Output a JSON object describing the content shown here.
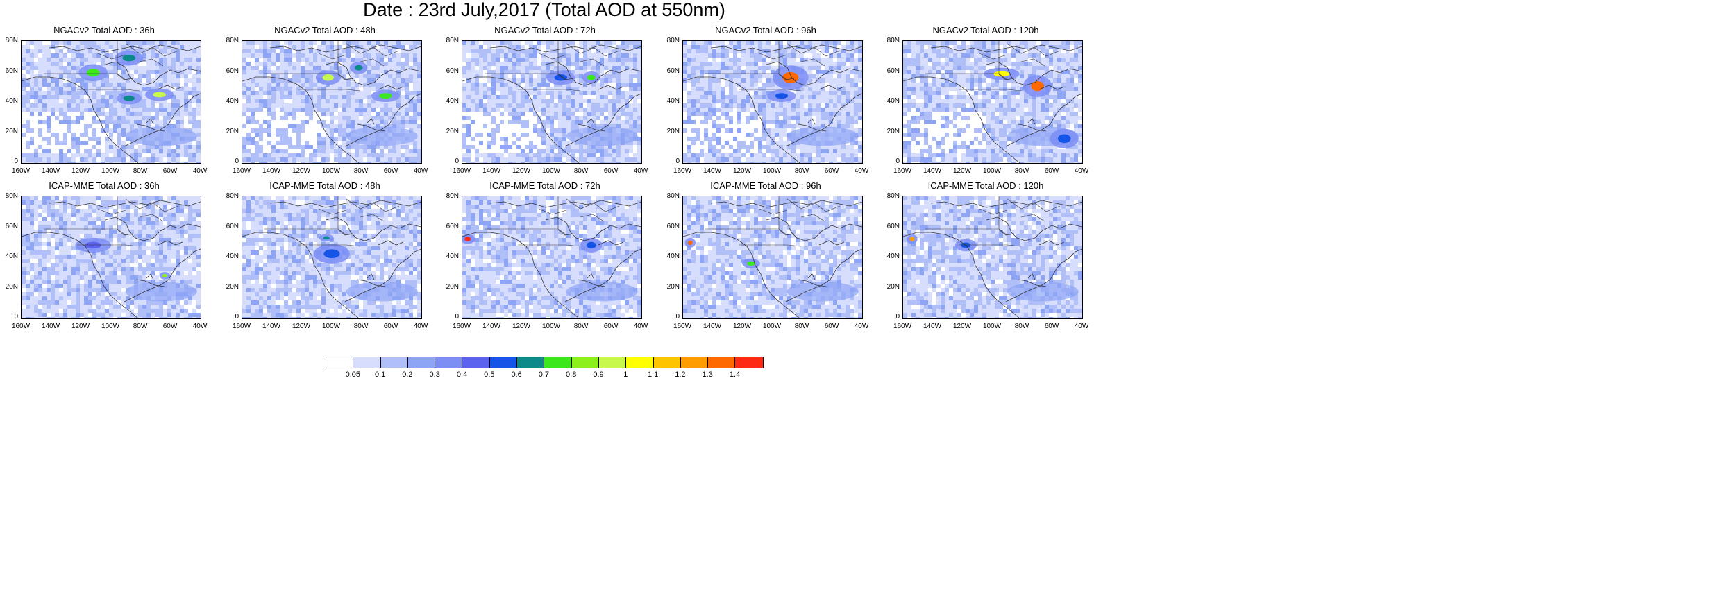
{
  "title": "Date : 23rd July,2017 (Total AOD at 550nm)",
  "lat_labels": [
    "80N",
    "60N",
    "40N",
    "20N",
    "0"
  ],
  "lon_labels": [
    "160W",
    "140W",
    "120W",
    "100W",
    "80W",
    "60W",
    "40W"
  ],
  "panels": [
    {
      "title": "NGACv2 Total AOD : 36h",
      "hotspots": [
        [
          "0.4",
          "0.26",
          "0.08",
          "0.07",
          0.7
        ],
        [
          "0.6",
          "0.14",
          "0.08",
          "0.06",
          0.6
        ],
        [
          "0.77",
          "0.44",
          "0.08",
          "0.05",
          0.9
        ],
        [
          "0.6",
          "0.47",
          "0.07",
          "0.05",
          0.6
        ]
      ]
    },
    {
      "title": "NGACv2 Total AOD : 48h",
      "hotspots": [
        [
          "0.48",
          "0.3",
          "0.07",
          "0.06",
          0.9
        ],
        [
          "0.8",
          "0.45",
          "0.08",
          "0.05",
          0.7
        ],
        [
          "0.65",
          "0.22",
          "0.05",
          "0.05",
          0.6
        ]
      ]
    },
    {
      "title": "NGACv2 Total AOD : 72h",
      "hotspots": [
        [
          "0.55",
          "0.3",
          "0.08",
          "0.06",
          0.5
        ],
        [
          "0.72",
          "0.3",
          "0.05",
          "0.05",
          0.7
        ]
      ]
    },
    {
      "title": "NGACv2 Total AOD : 96h",
      "hotspots": [
        [
          "0.6",
          "0.3",
          "0.1",
          "0.1",
          1.3
        ],
        [
          "0.55",
          "0.45",
          "0.08",
          "0.05",
          0.5
        ]
      ]
    },
    {
      "title": "NGACv2 Total AOD : 120h",
      "hotspots": [
        [
          "0.55",
          "0.27",
          "0.1",
          "0.05",
          1.0
        ],
        [
          "0.75",
          "0.37",
          "0.08",
          "0.09",
          1.3
        ],
        [
          "0.9",
          "0.8",
          "0.08",
          "0.08",
          0.5
        ]
      ]
    },
    {
      "title": "ICAP-MME Total AOD : 36h",
      "hotspots": [
        [
          "0.4",
          "0.4",
          "0.1",
          "0.06",
          0.4
        ],
        [
          "0.8",
          "0.65",
          "0.03",
          "0.03",
          0.8
        ]
      ]
    },
    {
      "title": "ICAP-MME Total AOD : 48h",
      "hotspots": [
        [
          "0.5",
          "0.47",
          "0.1",
          "0.08",
          0.5
        ],
        [
          "0.47",
          "0.34",
          "0.04",
          "0.03",
          0.6
        ]
      ]
    },
    {
      "title": "ICAP-MME Total AOD : 72h",
      "hotspots": [
        [
          "0.72",
          "0.4",
          "0.06",
          "0.06",
          0.5
        ],
        [
          "0.03",
          "0.35",
          "0.04",
          "0.04",
          1.4
        ]
      ]
    },
    {
      "title": "ICAP-MME Total AOD : 96h",
      "hotspots": [
        [
          "0.04",
          "0.38",
          "0.03",
          "0.04",
          1.3
        ],
        [
          "0.38",
          "0.55",
          "0.05",
          "0.04",
          0.7
        ]
      ]
    },
    {
      "title": "ICAP-MME Total AOD : 120h",
      "hotspots": [
        [
          "0.05",
          "0.35",
          "0.03",
          "0.04",
          1.2
        ],
        [
          "0.35",
          "0.4",
          "0.06",
          "0.05",
          0.5
        ]
      ]
    }
  ],
  "colorbar": {
    "labels": [
      "0.05",
      "0.1",
      "0.2",
      "0.3",
      "0.4",
      "0.5",
      "0.6",
      "0.7",
      "0.8",
      "0.9",
      "1",
      "1.1",
      "1.2",
      "1.3",
      "1.4"
    ],
    "colors": [
      "#ffffff",
      "#d7ddfc",
      "#b1bff9",
      "#8ea5f6",
      "#7c8ef4",
      "#5c63ee",
      "#1455e8",
      "#0c8a8a",
      "#3ce81c",
      "#8cf01c",
      "#c8f84c",
      "#ffff00",
      "#ffc400",
      "#ff9c00",
      "#ff6a00",
      "#ff2a14"
    ]
  }
}
